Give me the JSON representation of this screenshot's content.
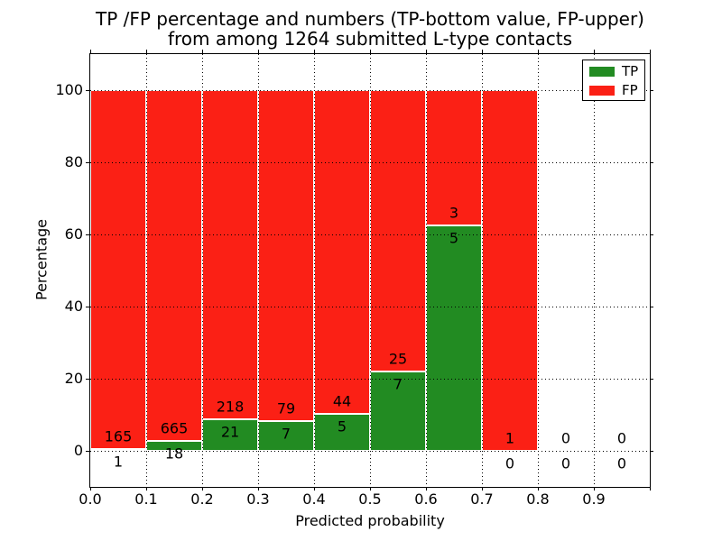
{
  "title": {
    "line1": "TP /FP percentage and numbers (TP-bottom value, FP-upper)",
    "line2": "from among 1264 submitted L-type contacts"
  },
  "axes": {
    "xlabel": "Predicted probability",
    "ylabel": "Percentage",
    "xlim": [
      0.0,
      1.0
    ],
    "ylim": [
      -10,
      110
    ],
    "xticks": [
      "0.0",
      "0.1",
      "0.2",
      "0.3",
      "0.4",
      "0.5",
      "0.6",
      "0.7",
      "0.8",
      "0.9"
    ],
    "yticks": [
      "0",
      "20",
      "40",
      "60",
      "80",
      "100"
    ],
    "grid": "dotted"
  },
  "legend": {
    "position": "upper right",
    "entries": [
      {
        "label": "TP",
        "color": "#228b22"
      },
      {
        "label": "FP",
        "color": "#fb2015"
      }
    ]
  },
  "colors": {
    "tp": "#228b22",
    "fp": "#fb2015",
    "grid": "#000000",
    "text": "#000000"
  },
  "chart_data": {
    "type": "bar",
    "stacked": true,
    "normalized_to": 100,
    "total_contacts": 1264,
    "bin_width": 0.1,
    "title": "TP /FP percentage and numbers (TP-bottom value, FP-upper) from among 1264 submitted L-type contacts",
    "xlabel": "Predicted probability",
    "ylabel": "Percentage",
    "categories": [
      "0.0",
      "0.1",
      "0.2",
      "0.3",
      "0.4",
      "0.5",
      "0.6",
      "0.7",
      "0.8",
      "0.9"
    ],
    "series": [
      {
        "name": "TP",
        "counts": [
          1,
          18,
          21,
          7,
          5,
          7,
          5,
          0,
          0,
          0
        ]
      },
      {
        "name": "FP",
        "counts": [
          165,
          665,
          218,
          79,
          44,
          25,
          3,
          1,
          0,
          0
        ]
      }
    ],
    "tp_pct": [
      0.6,
      2.64,
      8.79,
      8.14,
      10.2,
      21.88,
      62.5,
      0,
      0,
      0
    ]
  }
}
